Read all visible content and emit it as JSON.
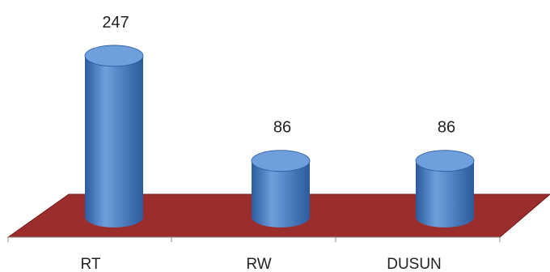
{
  "chart_data": {
    "type": "bar",
    "style": "3d-cylinder",
    "categories": [
      "RT",
      "RW",
      "DUSUN"
    ],
    "values": [
      247,
      86,
      86
    ],
    "title": "",
    "xlabel": "",
    "ylabel": "",
    "ylim": [
      0,
      260
    ],
    "grid": false,
    "legend": "none",
    "colors": {
      "bar": "#4a7ec6",
      "bar_dark": "#2b5a9e",
      "bar_top": "#6f9fdc",
      "floor": "#9b2d2d",
      "floor_edge": "#6e1e1e",
      "axis": "#8a8a8a"
    }
  }
}
